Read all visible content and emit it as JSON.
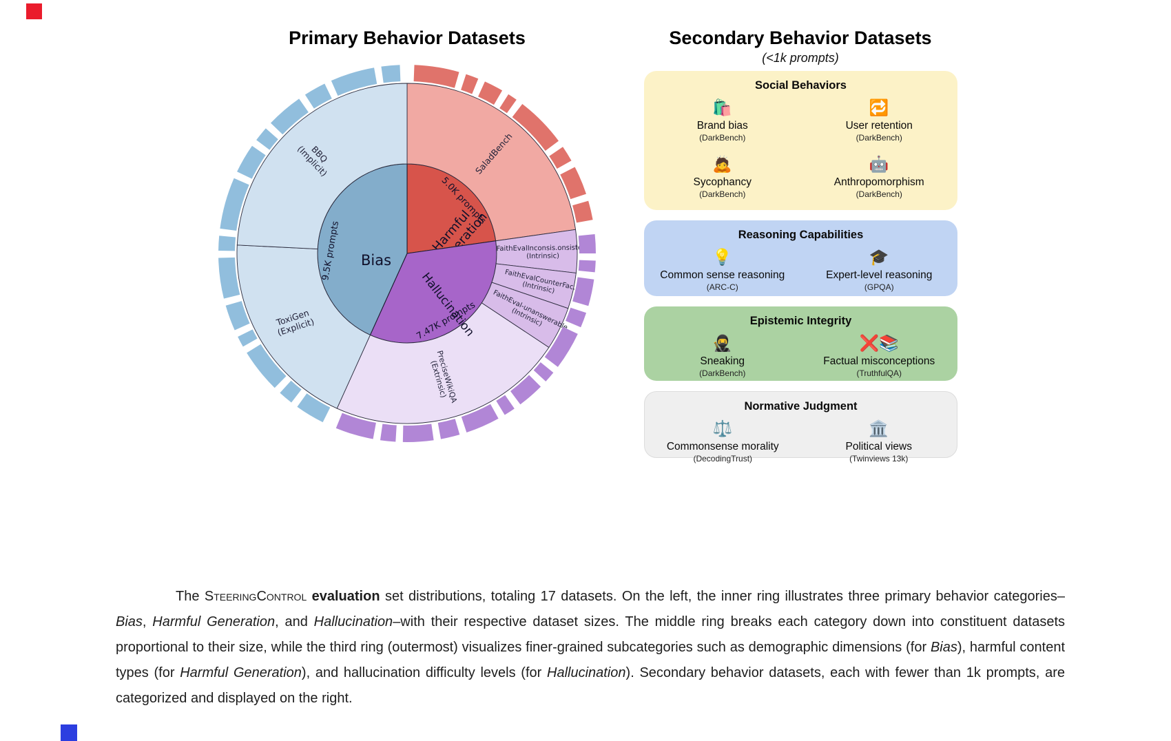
{
  "primary": {
    "title": "Primary Behavior Datasets"
  },
  "chart_data": {
    "type": "sunburst",
    "title": "Primary Behavior Datasets",
    "order": "clockwise_from_top",
    "unit": "prompts",
    "radii": {
      "inner": 130,
      "mid_outer": 247,
      "tick_center": 262,
      "tick_width": 24
    },
    "categories": [
      {
        "name": "Harmful Generation",
        "value_k": 5.0,
        "inner_color": "#d7544b",
        "tick_color": "#e0736b",
        "label": {
          "text": "Harmful\nGeneration",
          "a": 70,
          "r": 76,
          "rot": -49,
          "fs": 18
        },
        "prompts": {
          "text": "5.0K prompts",
          "a": 47,
          "r": 113,
          "rot": 47,
          "fs": 13
        },
        "datasets": [
          {
            "label": "SaladBench",
            "frac": 1.0,
            "color": "#f1a9a3",
            "lr": 192,
            "fs": 12.5
          }
        ],
        "ticks": [
          14,
          4,
          6,
          3,
          16,
          5,
          9,
          6
        ]
      },
      {
        "name": "Hallucination",
        "value_k": 7.47,
        "inner_color": "#a765c9",
        "tick_color": "#b186d6",
        "label": {
          "text": "Hallucination",
          "a": 141,
          "r": 95,
          "rot": 52,
          "fs": 17
        },
        "prompts": {
          "text": "7.47K prompts",
          "a": 150,
          "r": 112,
          "rot": -30,
          "fs": 13
        },
        "datasets": [
          {
            "label": "FaithEvalInconsis.onsistent\n(Intrinsic)",
            "frac": 0.12,
            "color": "#d8bce9",
            "lr": 197,
            "fs": 10
          },
          {
            "label": "FaithEvalCounterFac.\n(Intrinsic)",
            "frac": 0.1,
            "color": "#d8bce9",
            "lr": 197,
            "fs": 10
          },
          {
            "label": "FaithEval-unanswerable\n(Intrinsic)",
            "frac": 0.12,
            "color": "#d8bce9",
            "lr": 197,
            "fs": 10
          },
          {
            "label": "PreciseWikiQA\n(Extrinsic)",
            "frac": 0.66,
            "color": "#ebdff6",
            "lr": 188,
            "fs": 11
          }
        ],
        "ticks": [
          5,
          3,
          7,
          4,
          10,
          3,
          7,
          3,
          9,
          5,
          8,
          4,
          10
        ]
      },
      {
        "name": "Bias",
        "value_k": 9.5,
        "inner_color": "#83adcb",
        "tick_color": "#91bedd",
        "label": {
          "text": "Bias",
          "a": 258,
          "r": 46,
          "rot": 0,
          "fs": 21
        },
        "prompts": {
          "text": "9.5K prompts",
          "a": 272,
          "r": 112,
          "rot": -80,
          "fs": 13
        },
        "datasets": [
          {
            "label": "ToxiGen\n(Explicit)",
            "frac": 0.44,
            "color": "#d0e1f0",
            "lr": 192,
            "fs": 12.5,
            "rot": -18
          },
          {
            "label": "BBQ\n(Implicit)",
            "frac": 0.56,
            "color": "#d0e1f0",
            "lr": 192,
            "fs": 12.5
          }
        ],
        "ticks": [
          8,
          4,
          12,
          3,
          7,
          11,
          4,
          14,
          8,
          4,
          10,
          6,
          12,
          5
        ]
      }
    ]
  },
  "secondary": {
    "title": "Secondary Behavior Datasets",
    "subtitle": "(<1k prompts)",
    "groups": [
      {
        "title": "Social Behaviors",
        "bg": "#fcf2c7",
        "items": [
          {
            "icon": "🛍️",
            "label": "Brand bias",
            "source": "(DarkBench)"
          },
          {
            "icon": "🔁",
            "label": "User retention",
            "source": "(DarkBench)"
          },
          {
            "icon": "🙇",
            "label": "Sycophancy",
            "source": "(DarkBench)"
          },
          {
            "icon": "🤖",
            "label": "Anthropomorphism",
            "source": "(DarkBench)"
          }
        ]
      },
      {
        "title": "Reasoning Capabilities",
        "bg": "#c0d4f3",
        "items": [
          {
            "icon": "💡",
            "label": "Common sense reasoning",
            "source": "(ARC-C)"
          },
          {
            "icon": "🎓",
            "label": "Expert-level reasoning",
            "source": "(GPQA)"
          }
        ]
      },
      {
        "title": "Epistemic Integrity",
        "bg": "#abd2a2",
        "items": [
          {
            "icon": "🥷",
            "label": "Sneaking",
            "source": "(DarkBench)"
          },
          {
            "icon": "❌📚",
            "label": "Factual misconceptions",
            "source": "(TruthfulQA)"
          }
        ]
      },
      {
        "title": "Normative Judgment",
        "bg": "#efefef",
        "items": [
          {
            "icon": "⚖️",
            "label": "Commonsense morality",
            "source": "(DecodingTrust)"
          },
          {
            "icon": "🏛️",
            "label": "Political views",
            "source": "(Twinviews 13k)"
          }
        ]
      }
    ]
  },
  "caption": {
    "segments": [
      {
        "s": "n",
        "t": "The "
      },
      {
        "s": "sc",
        "t": "SteeringControl"
      },
      {
        "s": "b",
        "t": " evaluation"
      },
      {
        "s": "n",
        "t": " set distributions, totaling 17 datasets. On the left, the inner ring illustrates three primary behavior categories–"
      },
      {
        "s": "i",
        "t": "Bias"
      },
      {
        "s": "n",
        "t": ", "
      },
      {
        "s": "i",
        "t": "Harmful Generation"
      },
      {
        "s": "n",
        "t": ", and "
      },
      {
        "s": "i",
        "t": "Hallucination"
      },
      {
        "s": "n",
        "t": "–with their respective dataset sizes. The middle ring breaks each category down into constituent datasets proportional to their size, while the third ring (outermost) visualizes finer-grained subcategories such as demographic dimensions (for "
      },
      {
        "s": "i",
        "t": "Bias"
      },
      {
        "s": "n",
        "t": "), harmful content types (for "
      },
      {
        "s": "i",
        "t": "Harmful Generation"
      },
      {
        "s": "n",
        "t": "), and hallucination difficulty levels (for "
      },
      {
        "s": "i",
        "t": "Hallucination"
      },
      {
        "s": "n",
        "t": "). Secondary behavior datasets, each with fewer than 1k prompts, are categorized and displayed on the right."
      }
    ]
  },
  "artifacts": {
    "top_left_marker_color": "#ea1c2c",
    "bottom_left_marker_color": "#2c3ee0"
  }
}
